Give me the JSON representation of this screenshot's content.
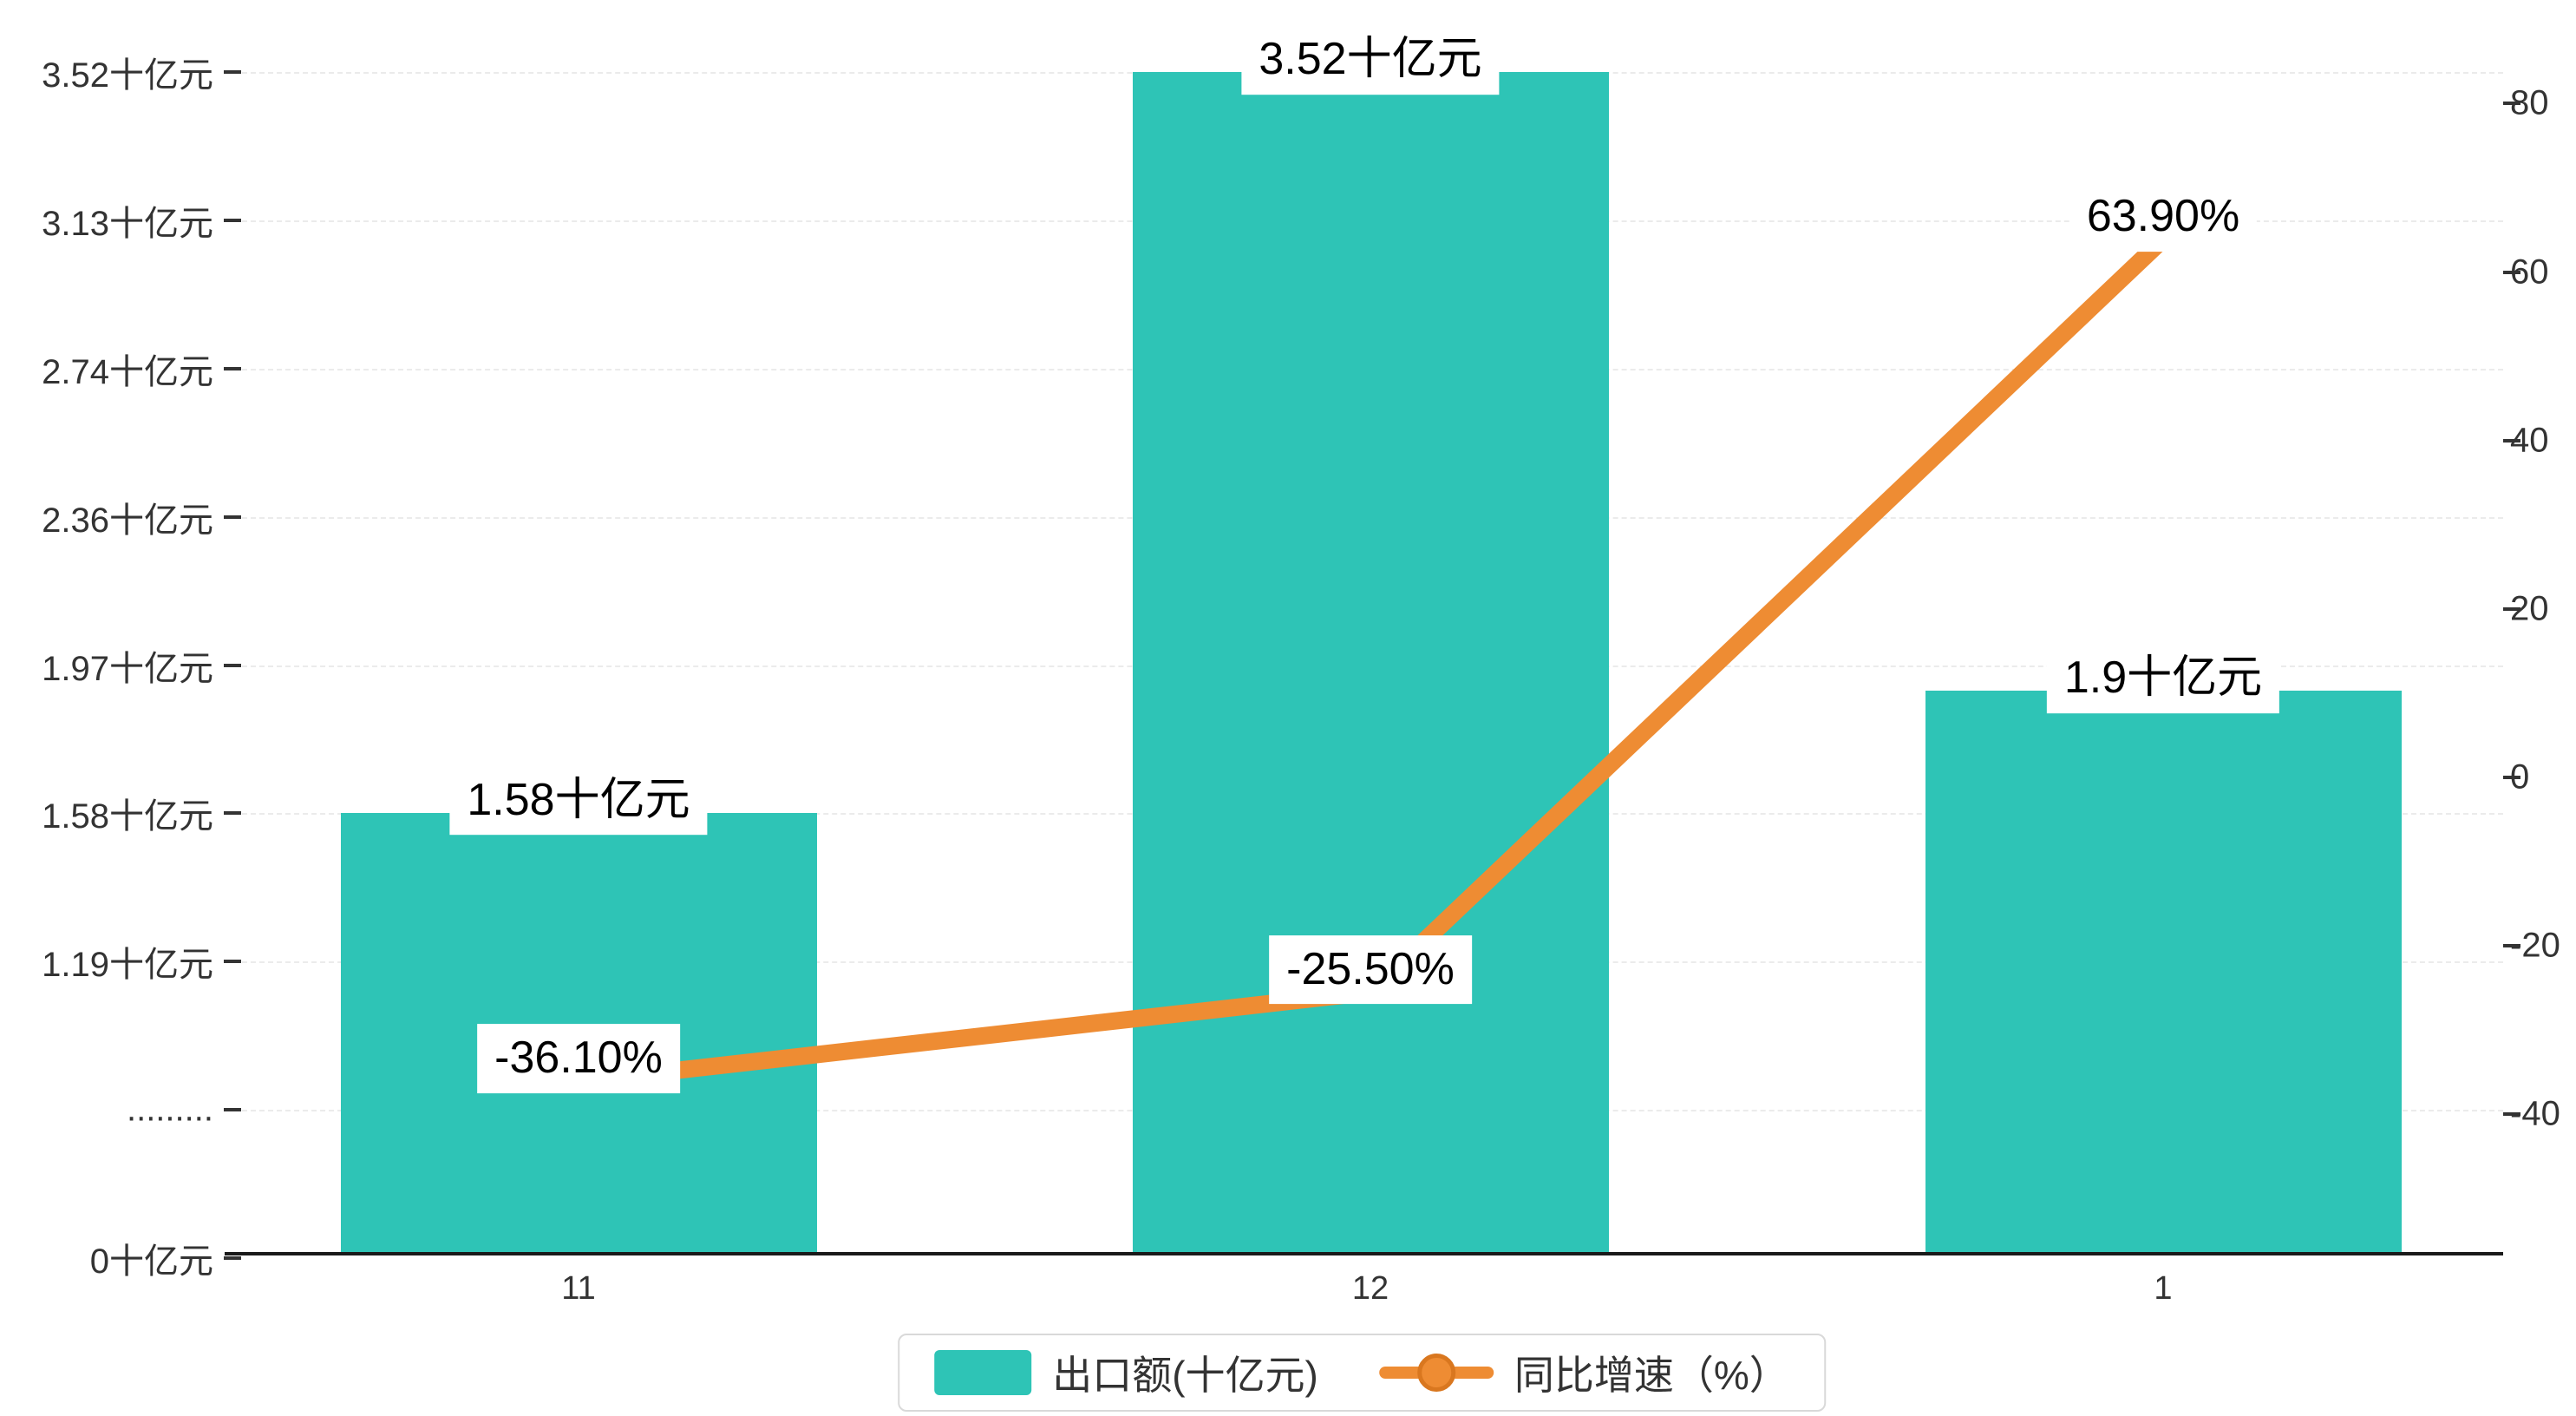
{
  "chart_data": {
    "type": "bar+line",
    "categories": [
      "11",
      "12",
      "1"
    ],
    "series": [
      {
        "name": "出口额(十亿元)",
        "type": "bar",
        "axis": "left",
        "values": [
          1.58,
          3.52,
          1.9
        ],
        "labels": [
          "1.58十亿元",
          "3.52十亿元",
          "1.9十亿元"
        ]
      },
      {
        "name": "同比增速（%）",
        "type": "line",
        "axis": "right",
        "values": [
          -36.1,
          -25.5,
          63.9
        ],
        "labels": [
          "-36.10%",
          "-25.50%",
          "63.90%"
        ]
      }
    ],
    "left_axis": {
      "title": "",
      "unit": "十亿元",
      "ticks": [
        "0十亿元",
        ".........",
        "1.19十亿元",
        "1.58十亿元",
        "1.97十亿元",
        "2.36十亿元",
        "2.74十亿元",
        "3.13十亿元",
        "3.52十亿元"
      ],
      "tick_values": [
        0,
        null,
        1.19,
        1.58,
        1.97,
        2.36,
        2.74,
        3.13,
        3.52
      ],
      "broken_axis": true
    },
    "right_axis": {
      "title": "",
      "unit": "%",
      "ticks": [
        "80",
        "60",
        "40",
        "20",
        "0",
        "-20",
        "-40"
      ],
      "tick_values": [
        80,
        60,
        40,
        20,
        0,
        -20,
        -40
      ],
      "range": [
        -40,
        80
      ]
    },
    "legend": [
      "出口额(十亿元)",
      "同比增速（%）"
    ],
    "legend_position": "bottom-center",
    "grid": "horizontal dashed"
  },
  "colors": {
    "bar": "#2ec4b6",
    "line": "#ee8c33",
    "line_marker_edge": "#d9771f",
    "grid": "#ebebeb",
    "axis": "#1a1a1a",
    "tick_text": "#333333",
    "label_text": "#000000",
    "legend_border": "#d9d9d9",
    "background": "#ffffff"
  }
}
